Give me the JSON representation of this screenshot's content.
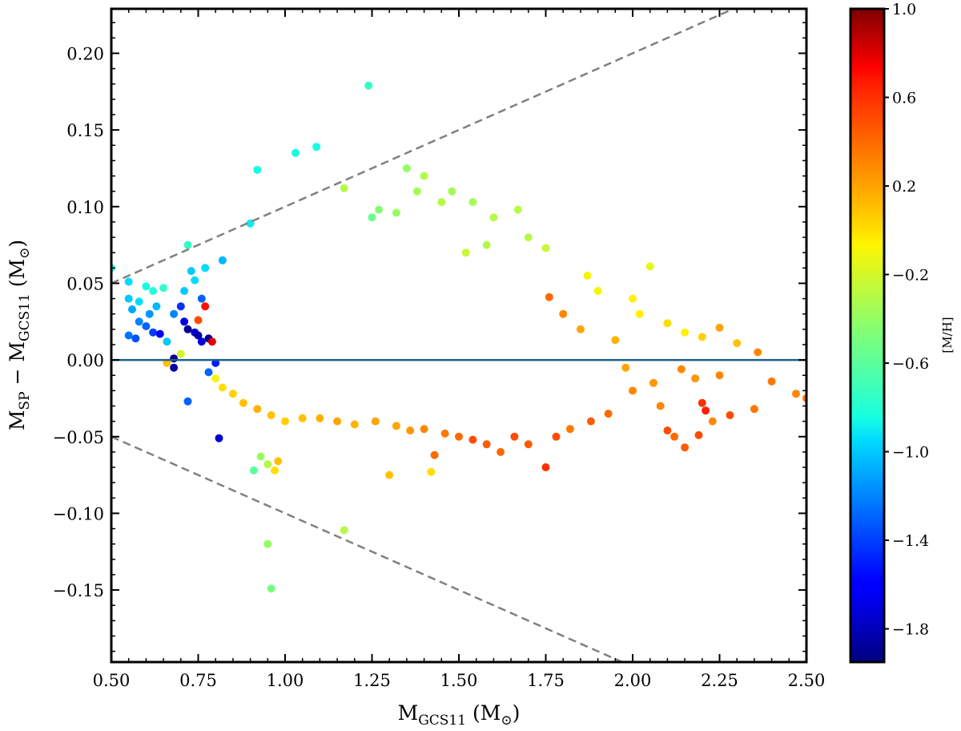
{
  "chart_data": {
    "type": "scatter",
    "title": "",
    "xlabel": {
      "main": "M",
      "sub": "GCS11",
      "unit_open": " (M",
      "unit_close": ")"
    },
    "ylabel": {
      "m1": "M",
      "sub1": "SP",
      "minus": " − M",
      "sub2": "GCS11",
      "unit_open": " (M",
      "unit_close": ")"
    },
    "xlim": [
      0.5,
      2.5
    ],
    "ylim": [
      -0.197,
      0.229
    ],
    "x_ticks": [
      0.5,
      0.75,
      1.0,
      1.25,
      1.5,
      1.75,
      2.0,
      2.25,
      2.5
    ],
    "x_tick_labels": [
      "0.50",
      "0.75",
      "1.00",
      "1.25",
      "1.50",
      "1.75",
      "2.00",
      "2.25",
      "2.50"
    ],
    "y_ticks": [
      -0.15,
      -0.1,
      -0.05,
      0.0,
      0.05,
      0.1,
      0.15,
      0.2
    ],
    "y_tick_labels": [
      "−0.15",
      "−0.10",
      "−0.05",
      "0.00",
      "0.05",
      "0.10",
      "0.15",
      "0.20"
    ],
    "grid": false,
    "colorbar": {
      "label": "[M/H]",
      "range": [
        -1.95,
        1.0
      ],
      "ticks": [
        1.0,
        0.6,
        0.2,
        -0.2,
        -0.6,
        -1.0,
        -1.4,
        -1.8
      ],
      "tick_labels": [
        "1.0",
        "0.6",
        "0.2",
        "−0.2",
        "−0.6",
        "−1.0",
        "−1.4",
        "−1.8"
      ],
      "colormap": "jet"
    },
    "reference_lines": [
      {
        "kind": "horizontal",
        "y": 0.0,
        "color": "#1f5f8b"
      },
      {
        "kind": "dashed",
        "color": "#808080",
        "slope": 0.1,
        "intercept": 0.0
      },
      {
        "kind": "dashed",
        "color": "#808080",
        "slope": -0.1,
        "intercept": 0.0
      }
    ],
    "points": [
      [
        1.24,
        0.179,
        -0.75
      ],
      [
        1.03,
        0.135,
        -0.85
      ],
      [
        1.09,
        0.139,
        -0.85
      ],
      [
        0.92,
        0.124,
        -0.85
      ],
      [
        0.9,
        0.089,
        -0.9
      ],
      [
        0.72,
        0.075,
        -0.75
      ],
      [
        0.82,
        0.065,
        -1.05
      ],
      [
        0.5,
        0.06,
        -0.8
      ],
      [
        0.55,
        0.051,
        -0.95
      ],
      [
        0.6,
        0.048,
        -0.85
      ],
      [
        0.62,
        0.045,
        -0.8
      ],
      [
        0.65,
        0.047,
        -0.75
      ],
      [
        0.55,
        0.04,
        -1.0
      ],
      [
        0.56,
        0.033,
        -1.1
      ],
      [
        0.58,
        0.038,
        -0.95
      ],
      [
        0.61,
        0.03,
        -1.15
      ],
      [
        0.63,
        0.035,
        -1.05
      ],
      [
        0.58,
        0.025,
        -1.2
      ],
      [
        0.6,
        0.022,
        -1.3
      ],
      [
        0.62,
        0.018,
        -1.4
      ],
      [
        0.55,
        0.016,
        -1.25
      ],
      [
        0.57,
        0.014,
        -1.35
      ],
      [
        0.64,
        0.017,
        -1.6
      ],
      [
        0.66,
        0.012,
        -1.0
      ],
      [
        0.68,
        0.03,
        -1.2
      ],
      [
        0.7,
        0.035,
        -1.45
      ],
      [
        0.71,
        0.025,
        -1.7
      ],
      [
        0.72,
        0.02,
        -1.9
      ],
      [
        0.74,
        0.018,
        -1.75
      ],
      [
        0.75,
        0.016,
        -1.85
      ],
      [
        0.76,
        0.012,
        -1.7
      ],
      [
        0.78,
        0.014,
        -1.9
      ],
      [
        0.79,
        0.012,
        0.8
      ],
      [
        0.77,
        0.035,
        0.7
      ],
      [
        0.75,
        0.026,
        0.5
      ],
      [
        0.76,
        0.04,
        -1.3
      ],
      [
        0.74,
        0.052,
        -0.95
      ],
      [
        0.73,
        0.058,
        -1.0
      ],
      [
        0.77,
        0.06,
        -0.95
      ],
      [
        0.71,
        0.045,
        -1.0
      ],
      [
        0.68,
        0.001,
        -1.9
      ],
      [
        0.68,
        -0.005,
        -1.85
      ],
      [
        0.72,
        -0.027,
        -1.3
      ],
      [
        0.81,
        -0.051,
        -1.75
      ],
      [
        0.78,
        -0.008,
        -1.3
      ],
      [
        0.8,
        -0.002,
        -1.5
      ],
      [
        0.66,
        -0.002,
        0.1
      ],
      [
        0.7,
        0.004,
        -0.2
      ],
      [
        0.91,
        -0.072,
        -0.6
      ],
      [
        0.93,
        -0.063,
        -0.4
      ],
      [
        0.95,
        -0.068,
        -0.3
      ],
      [
        0.97,
        -0.072,
        0.0
      ],
      [
        0.98,
        -0.066,
        0.1
      ],
      [
        0.95,
        -0.12,
        -0.4
      ],
      [
        0.96,
        -0.149,
        -0.5
      ],
      [
        1.17,
        -0.111,
        -0.3
      ],
      [
        1.3,
        -0.075,
        0.1
      ],
      [
        1.42,
        -0.073,
        0.0
      ],
      [
        1.43,
        -0.062,
        0.4
      ],
      [
        1.75,
        -0.07,
        0.6
      ],
      [
        1.35,
        0.125,
        -0.4
      ],
      [
        1.4,
        0.12,
        -0.3
      ],
      [
        1.38,
        0.11,
        -0.35
      ],
      [
        1.45,
        0.103,
        -0.3
      ],
      [
        1.32,
        0.096,
        -0.4
      ],
      [
        1.27,
        0.098,
        -0.45
      ],
      [
        1.25,
        0.093,
        -0.55
      ],
      [
        1.17,
        0.112,
        -0.3
      ],
      [
        1.54,
        0.103,
        -0.35
      ],
      [
        1.6,
        0.093,
        -0.3
      ],
      [
        1.67,
        0.098,
        -0.3
      ],
      [
        1.48,
        0.11,
        -0.35
      ],
      [
        1.52,
        0.07,
        -0.25
      ],
      [
        1.58,
        0.075,
        -0.3
      ],
      [
        1.7,
        0.08,
        -0.3
      ],
      [
        1.75,
        0.073,
        -0.25
      ],
      [
        2.05,
        0.061,
        -0.15
      ],
      [
        1.87,
        0.055,
        -0.1
      ],
      [
        1.9,
        0.045,
        -0.1
      ],
      [
        2.0,
        0.04,
        -0.05
      ],
      [
        2.02,
        0.03,
        -0.05
      ],
      [
        2.1,
        0.024,
        0.0
      ],
      [
        2.15,
        0.018,
        -0.05
      ],
      [
        2.2,
        0.015,
        0.05
      ],
      [
        2.25,
        0.021,
        0.2
      ],
      [
        2.3,
        0.011,
        0.1
      ],
      [
        2.36,
        0.005,
        0.3
      ],
      [
        2.4,
        -0.014,
        0.35
      ],
      [
        2.47,
        -0.022,
        0.3
      ],
      [
        2.5,
        -0.025,
        0.35
      ],
      [
        2.35,
        -0.032,
        0.35
      ],
      [
        2.28,
        -0.036,
        0.5
      ],
      [
        2.2,
        -0.028,
        0.6
      ],
      [
        2.21,
        -0.033,
        0.65
      ],
      [
        2.19,
        -0.049,
        0.5
      ],
      [
        2.15,
        -0.057,
        0.45
      ],
      [
        2.12,
        -0.05,
        0.4
      ],
      [
        2.1,
        -0.046,
        0.5
      ],
      [
        2.08,
        -0.03,
        0.3
      ],
      [
        2.23,
        -0.04,
        0.3
      ],
      [
        2.25,
        -0.01,
        0.3
      ],
      [
        2.18,
        -0.012,
        0.25
      ],
      [
        2.14,
        -0.006,
        0.3
      ],
      [
        2.06,
        -0.015,
        0.25
      ],
      [
        1.76,
        0.041,
        0.4
      ],
      [
        1.8,
        0.03,
        0.3
      ],
      [
        1.85,
        0.02,
        0.2
      ],
      [
        1.95,
        0.013,
        0.15
      ],
      [
        1.98,
        -0.005,
        0.2
      ],
      [
        2.0,
        -0.02,
        0.3
      ],
      [
        1.93,
        -0.035,
        0.4
      ],
      [
        1.88,
        -0.04,
        0.45
      ],
      [
        1.82,
        -0.045,
        0.35
      ],
      [
        1.78,
        -0.05,
        0.5
      ],
      [
        1.7,
        -0.055,
        0.45
      ],
      [
        1.66,
        -0.05,
        0.5
      ],
      [
        1.62,
        -0.06,
        0.4
      ],
      [
        1.58,
        -0.055,
        0.45
      ],
      [
        1.54,
        -0.052,
        0.5
      ],
      [
        1.5,
        -0.05,
        0.4
      ],
      [
        1.46,
        -0.048,
        0.35
      ],
      [
        1.4,
        -0.045,
        0.3
      ],
      [
        1.36,
        -0.046,
        0.25
      ],
      [
        1.32,
        -0.043,
        0.2
      ],
      [
        1.26,
        -0.04,
        0.2
      ],
      [
        1.2,
        -0.042,
        0.15
      ],
      [
        1.15,
        -0.04,
        0.2
      ],
      [
        1.1,
        -0.038,
        0.15
      ],
      [
        1.05,
        -0.038,
        0.1
      ],
      [
        1.0,
        -0.04,
        0.05
      ],
      [
        0.96,
        -0.036,
        0.1
      ],
      [
        0.92,
        -0.032,
        0.15
      ],
      [
        0.88,
        -0.028,
        0.1
      ],
      [
        0.85,
        -0.022,
        0.05
      ],
      [
        0.82,
        -0.018,
        0.0
      ],
      [
        0.8,
        -0.012,
        -0.1
      ]
    ]
  }
}
